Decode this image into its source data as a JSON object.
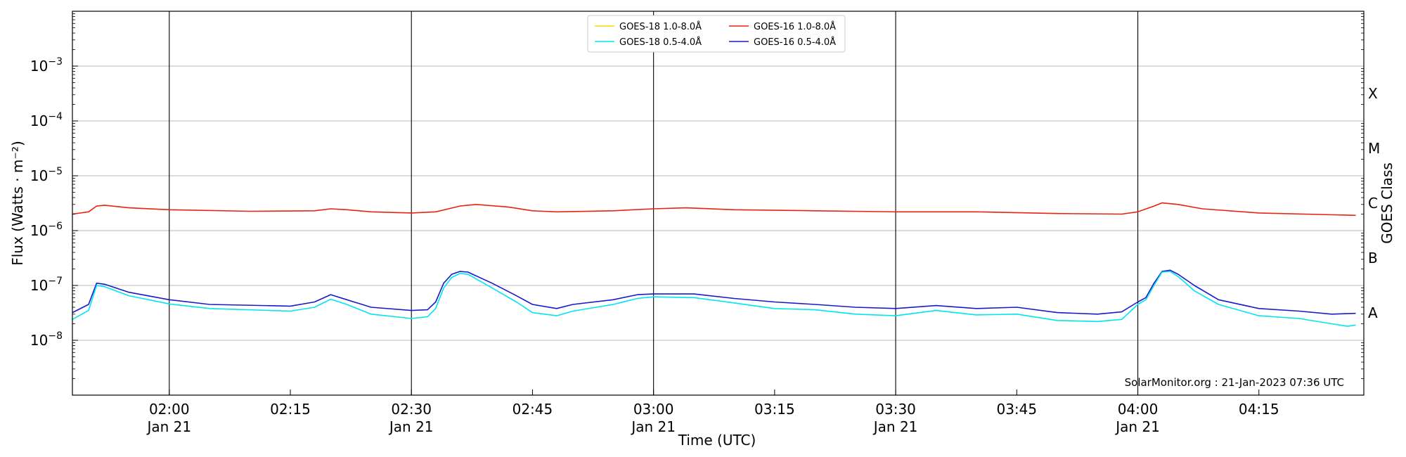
{
  "chart_data": {
    "type": "line",
    "xlabel": "Time (UTC)",
    "ylabel": "Flux (Watts · m⁻²)",
    "ylabel_right": "GOES Class",
    "credit": "SolarMonitor.org : 21-Jan-2023 07:36 UTC",
    "y_scale": "log",
    "ylim": [
      1e-09,
      0.01
    ],
    "xlim": [
      "2023-01-21T01:48",
      "2023-01-21T04:28"
    ],
    "y_ticks": [
      {
        "value": 1e-08,
        "base": "10",
        "exp": "−8"
      },
      {
        "value": 1e-07,
        "base": "10",
        "exp": "−7"
      },
      {
        "value": 1e-06,
        "base": "10",
        "exp": "−6"
      },
      {
        "value": 1e-05,
        "base": "10",
        "exp": "−5"
      },
      {
        "value": 0.0001,
        "base": "10",
        "exp": "−4"
      },
      {
        "value": 0.001,
        "base": "10",
        "exp": "−3"
      }
    ],
    "x_ticks": [
      {
        "time": "2023-01-21T02:00",
        "label": "02:00",
        "date": "Jan 21",
        "vline": true
      },
      {
        "time": "2023-01-21T02:15",
        "label": "02:15",
        "date": "",
        "vline": false
      },
      {
        "time": "2023-01-21T02:30",
        "label": "02:30",
        "date": "Jan 21",
        "vline": true
      },
      {
        "time": "2023-01-21T02:45",
        "label": "02:45",
        "date": "",
        "vline": false
      },
      {
        "time": "2023-01-21T03:00",
        "label": "03:00",
        "date": "Jan 21",
        "vline": true
      },
      {
        "time": "2023-01-21T03:15",
        "label": "03:15",
        "date": "",
        "vline": false
      },
      {
        "time": "2023-01-21T03:30",
        "label": "03:30",
        "date": "Jan 21",
        "vline": true
      },
      {
        "time": "2023-01-21T03:45",
        "label": "03:45",
        "date": "",
        "vline": false
      },
      {
        "time": "2023-01-21T04:00",
        "label": "04:00",
        "date": "Jan 21",
        "vline": true
      },
      {
        "time": "2023-01-21T04:15",
        "label": "04:15",
        "date": "",
        "vline": false
      }
    ],
    "goes_classes": [
      {
        "label": "A",
        "value": 3.16e-08
      },
      {
        "label": "B",
        "value": 3.16e-07
      },
      {
        "label": "C",
        "value": 3.16e-06
      },
      {
        "label": "M",
        "value": 3.16e-05
      },
      {
        "label": "X",
        "value": 0.000316
      }
    ],
    "legend": {
      "placement": "top-center",
      "entries": [
        {
          "label": "GOES-18 1.0-8.0Å",
          "color": "#ffd700"
        },
        {
          "label": "GOES-16 1.0-8.0Å",
          "color": "#e8230f"
        },
        {
          "label": "GOES-18 0.5-4.0Å",
          "color": "#00e5ee"
        },
        {
          "label": "GOES-16 0.5-4.0Å",
          "color": "#1a1acc"
        }
      ]
    },
    "series": [
      {
        "name": "GOES-16 1.0-8.0Å",
        "color": "#e8230f",
        "points": [
          [
            "2023-01-21T01:48",
            2e-06
          ],
          [
            "2023-01-21T01:50",
            2.2e-06
          ],
          [
            "2023-01-21T01:51",
            2.8e-06
          ],
          [
            "2023-01-21T01:52",
            2.9e-06
          ],
          [
            "2023-01-21T01:55",
            2.6e-06
          ],
          [
            "2023-01-21T02:00",
            2.4e-06
          ],
          [
            "2023-01-21T02:10",
            2.25e-06
          ],
          [
            "2023-01-21T02:18",
            2.3e-06
          ],
          [
            "2023-01-21T02:20",
            2.5e-06
          ],
          [
            "2023-01-21T02:22",
            2.4e-06
          ],
          [
            "2023-01-21T02:25",
            2.2e-06
          ],
          [
            "2023-01-21T02:30",
            2.1e-06
          ],
          [
            "2023-01-21T02:33",
            2.2e-06
          ],
          [
            "2023-01-21T02:36",
            2.8e-06
          ],
          [
            "2023-01-21T02:38",
            3e-06
          ],
          [
            "2023-01-21T02:42",
            2.7e-06
          ],
          [
            "2023-01-21T02:45",
            2.3e-06
          ],
          [
            "2023-01-21T02:48",
            2.2e-06
          ],
          [
            "2023-01-21T02:55",
            2.3e-06
          ],
          [
            "2023-01-21T03:00",
            2.5e-06
          ],
          [
            "2023-01-21T03:04",
            2.6e-06
          ],
          [
            "2023-01-21T03:10",
            2.4e-06
          ],
          [
            "2023-01-21T03:20",
            2.3e-06
          ],
          [
            "2023-01-21T03:30",
            2.2e-06
          ],
          [
            "2023-01-21T03:40",
            2.2e-06
          ],
          [
            "2023-01-21T03:50",
            2.05e-06
          ],
          [
            "2023-01-21T03:58",
            2e-06
          ],
          [
            "2023-01-21T04:00",
            2.2e-06
          ],
          [
            "2023-01-21T04:02",
            2.8e-06
          ],
          [
            "2023-01-21T04:03",
            3.2e-06
          ],
          [
            "2023-01-21T04:05",
            3e-06
          ],
          [
            "2023-01-21T04:08",
            2.5e-06
          ],
          [
            "2023-01-21T04:15",
            2.1e-06
          ],
          [
            "2023-01-21T04:27",
            1.9e-06
          ]
        ]
      },
      {
        "name": "GOES-16 0.5-4.0Å",
        "color": "#1a1acc",
        "points": [
          [
            "2023-01-21T01:48",
            3.2e-08
          ],
          [
            "2023-01-21T01:50",
            4.5e-08
          ],
          [
            "2023-01-21T01:51",
            1.1e-07
          ],
          [
            "2023-01-21T01:52",
            1.05e-07
          ],
          [
            "2023-01-21T01:55",
            7.5e-08
          ],
          [
            "2023-01-21T02:00",
            5.5e-08
          ],
          [
            "2023-01-21T02:05",
            4.5e-08
          ],
          [
            "2023-01-21T02:15",
            4.2e-08
          ],
          [
            "2023-01-21T02:18",
            5e-08
          ],
          [
            "2023-01-21T02:20",
            6.8e-08
          ],
          [
            "2023-01-21T02:22",
            5.5e-08
          ],
          [
            "2023-01-21T02:25",
            4e-08
          ],
          [
            "2023-01-21T02:30",
            3.5e-08
          ],
          [
            "2023-01-21T02:32",
            3.6e-08
          ],
          [
            "2023-01-21T02:33",
            5e-08
          ],
          [
            "2023-01-21T02:34",
            1.1e-07
          ],
          [
            "2023-01-21T02:35",
            1.6e-07
          ],
          [
            "2023-01-21T02:36",
            1.8e-07
          ],
          [
            "2023-01-21T02:37",
            1.75e-07
          ],
          [
            "2023-01-21T02:40",
            1.1e-07
          ],
          [
            "2023-01-21T02:43",
            6.5e-08
          ],
          [
            "2023-01-21T02:45",
            4.5e-08
          ],
          [
            "2023-01-21T02:48",
            3.8e-08
          ],
          [
            "2023-01-21T02:50",
            4.5e-08
          ],
          [
            "2023-01-21T02:55",
            5.5e-08
          ],
          [
            "2023-01-21T02:58",
            6.8e-08
          ],
          [
            "2023-01-21T03:00",
            7e-08
          ],
          [
            "2023-01-21T03:05",
            7e-08
          ],
          [
            "2023-01-21T03:10",
            5.8e-08
          ],
          [
            "2023-01-21T03:15",
            5e-08
          ],
          [
            "2023-01-21T03:20",
            4.5e-08
          ],
          [
            "2023-01-21T03:25",
            4e-08
          ],
          [
            "2023-01-21T03:30",
            3.8e-08
          ],
          [
            "2023-01-21T03:35",
            4.3e-08
          ],
          [
            "2023-01-21T03:40",
            3.8e-08
          ],
          [
            "2023-01-21T03:45",
            4e-08
          ],
          [
            "2023-01-21T03:50",
            3.2e-08
          ],
          [
            "2023-01-21T03:55",
            3e-08
          ],
          [
            "2023-01-21T03:58",
            3.3e-08
          ],
          [
            "2023-01-21T04:00",
            5e-08
          ],
          [
            "2023-01-21T04:01",
            6e-08
          ],
          [
            "2023-01-21T04:02",
            1.1e-07
          ],
          [
            "2023-01-21T04:03",
            1.8e-07
          ],
          [
            "2023-01-21T04:04",
            1.9e-07
          ],
          [
            "2023-01-21T04:05",
            1.6e-07
          ],
          [
            "2023-01-21T04:07",
            1e-07
          ],
          [
            "2023-01-21T04:10",
            5.5e-08
          ],
          [
            "2023-01-21T04:15",
            3.8e-08
          ],
          [
            "2023-01-21T04:20",
            3.4e-08
          ],
          [
            "2023-01-21T04:24",
            3e-08
          ],
          [
            "2023-01-21T04:27",
            3.1e-08
          ]
        ]
      },
      {
        "name": "GOES-18 0.5-4.0Å",
        "color": "#00e5ee",
        "points": [
          [
            "2023-01-21T01:48",
            2.4e-08
          ],
          [
            "2023-01-21T01:50",
            3.5e-08
          ],
          [
            "2023-01-21T01:51",
            1e-07
          ],
          [
            "2023-01-21T01:52",
            9.5e-08
          ],
          [
            "2023-01-21T01:55",
            6.5e-08
          ],
          [
            "2023-01-21T02:00",
            4.6e-08
          ],
          [
            "2023-01-21T02:05",
            3.8e-08
          ],
          [
            "2023-01-21T02:15",
            3.4e-08
          ],
          [
            "2023-01-21T02:18",
            4e-08
          ],
          [
            "2023-01-21T02:20",
            5.6e-08
          ],
          [
            "2023-01-21T02:22",
            4.5e-08
          ],
          [
            "2023-01-21T02:25",
            3e-08
          ],
          [
            "2023-01-21T02:30",
            2.5e-08
          ],
          [
            "2023-01-21T02:32",
            2.7e-08
          ],
          [
            "2023-01-21T02:33",
            3.8e-08
          ],
          [
            "2023-01-21T02:34",
            9e-08
          ],
          [
            "2023-01-21T02:35",
            1.4e-07
          ],
          [
            "2023-01-21T02:36",
            1.65e-07
          ],
          [
            "2023-01-21T02:37",
            1.6e-07
          ],
          [
            "2023-01-21T02:40",
            9e-08
          ],
          [
            "2023-01-21T02:43",
            5e-08
          ],
          [
            "2023-01-21T02:45",
            3.2e-08
          ],
          [
            "2023-01-21T02:48",
            2.8e-08
          ],
          [
            "2023-01-21T02:50",
            3.4e-08
          ],
          [
            "2023-01-21T02:55",
            4.5e-08
          ],
          [
            "2023-01-21T02:58",
            5.8e-08
          ],
          [
            "2023-01-21T03:00",
            6.2e-08
          ],
          [
            "2023-01-21T03:05",
            6e-08
          ],
          [
            "2023-01-21T03:10",
            4.8e-08
          ],
          [
            "2023-01-21T03:15",
            3.8e-08
          ],
          [
            "2023-01-21T03:20",
            3.6e-08
          ],
          [
            "2023-01-21T03:25",
            3e-08
          ],
          [
            "2023-01-21T03:30",
            2.8e-08
          ],
          [
            "2023-01-21T03:35",
            3.5e-08
          ],
          [
            "2023-01-21T03:40",
            2.9e-08
          ],
          [
            "2023-01-21T03:45",
            3e-08
          ],
          [
            "2023-01-21T03:50",
            2.3e-08
          ],
          [
            "2023-01-21T03:55",
            2.2e-08
          ],
          [
            "2023-01-21T03:58",
            2.4e-08
          ],
          [
            "2023-01-21T04:00",
            4.5e-08
          ],
          [
            "2023-01-21T04:01",
            5.5e-08
          ],
          [
            "2023-01-21T04:02",
            1e-07
          ],
          [
            "2023-01-21T04:03",
            1.75e-07
          ],
          [
            "2023-01-21T04:04",
            1.8e-07
          ],
          [
            "2023-01-21T04:05",
            1.45e-07
          ],
          [
            "2023-01-21T04:07",
            8e-08
          ],
          [
            "2023-01-21T04:10",
            4.5e-08
          ],
          [
            "2023-01-21T04:15",
            2.8e-08
          ],
          [
            "2023-01-21T04:20",
            2.5e-08
          ],
          [
            "2023-01-21T04:24",
            2e-08
          ],
          [
            "2023-01-21T04:26",
            1.8e-08
          ],
          [
            "2023-01-21T04:27",
            1.9e-08
          ]
        ]
      }
    ]
  }
}
